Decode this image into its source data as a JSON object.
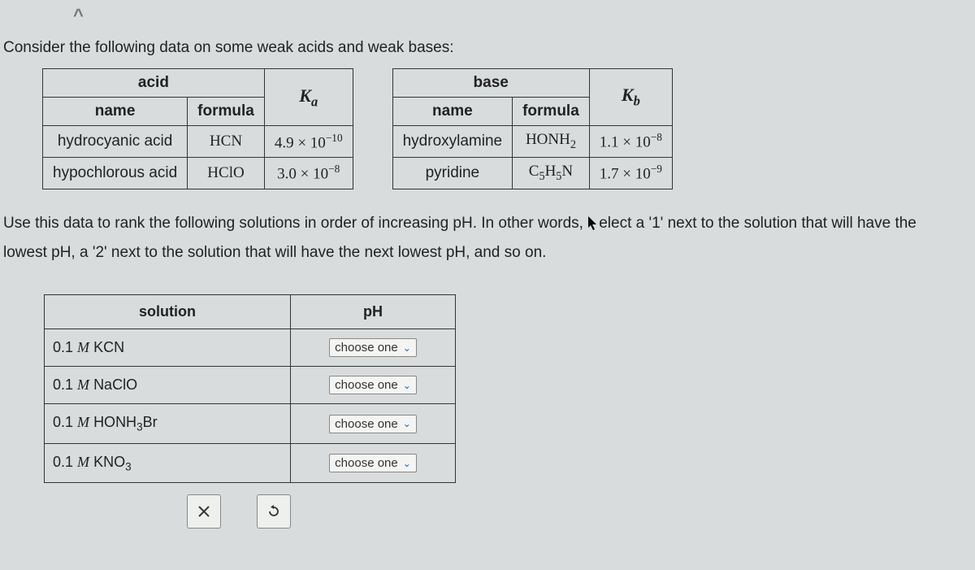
{
  "intro": "Consider the following data on some weak acids and weak bases:",
  "acid_table": {
    "group_header": "acid",
    "name_header": "name",
    "formula_header": "formula",
    "k_label_base": "K",
    "k_label_sub": "a",
    "rows": [
      {
        "name": "hydrocyanic acid",
        "formula": "HCN",
        "coef": "4.9",
        "exp": "−10"
      },
      {
        "name": "hypochlorous acid",
        "formula": "HClO",
        "coef": "3.0",
        "exp": "−8"
      }
    ]
  },
  "base_table": {
    "group_header": "base",
    "name_header": "name",
    "formula_header": "formula",
    "k_label_base": "K",
    "k_label_sub": "b",
    "rows": [
      {
        "name": "hydroxylamine",
        "formula_html": "HONH<sub>2</sub>",
        "coef": "1.1",
        "exp": "−8"
      },
      {
        "name": "pyridine",
        "formula_html": "C<sub>5</sub>H<sub>5</sub>N",
        "coef": "1.7",
        "exp": "−9"
      }
    ]
  },
  "instruction_1": "Use this data to rank the following solutions in order of increasing pH. In other words, ",
  "instruction_1b": "elect a '1' next to the solution that will have the",
  "instruction_2": "lowest pH, a '2' next to the solution that will have the next lowest pH, and so on.",
  "rank_table": {
    "solution_header": "solution",
    "ph_header": "pH",
    "dropdown_placeholder": "choose one",
    "rows": [
      {
        "conc": "0.1",
        "unit": "M",
        "species_html": "KCN"
      },
      {
        "conc": "0.1",
        "unit": "M",
        "species_html": "NaClO"
      },
      {
        "conc": "0.1",
        "unit": "M",
        "species_html": "HONH<sub>3</sub>Br"
      },
      {
        "conc": "0.1",
        "unit": "M",
        "species_html": "KNO<sub>3</sub>"
      }
    ]
  },
  "buttons": {
    "clear": "×",
    "reset": "↺"
  },
  "colors": {
    "background": "#d9dcdc",
    "border": "#333333",
    "dropdown_bg": "#f4f4f2",
    "dropdown_chevron": "#1a62c6",
    "button_bg": "#eef0ee"
  }
}
